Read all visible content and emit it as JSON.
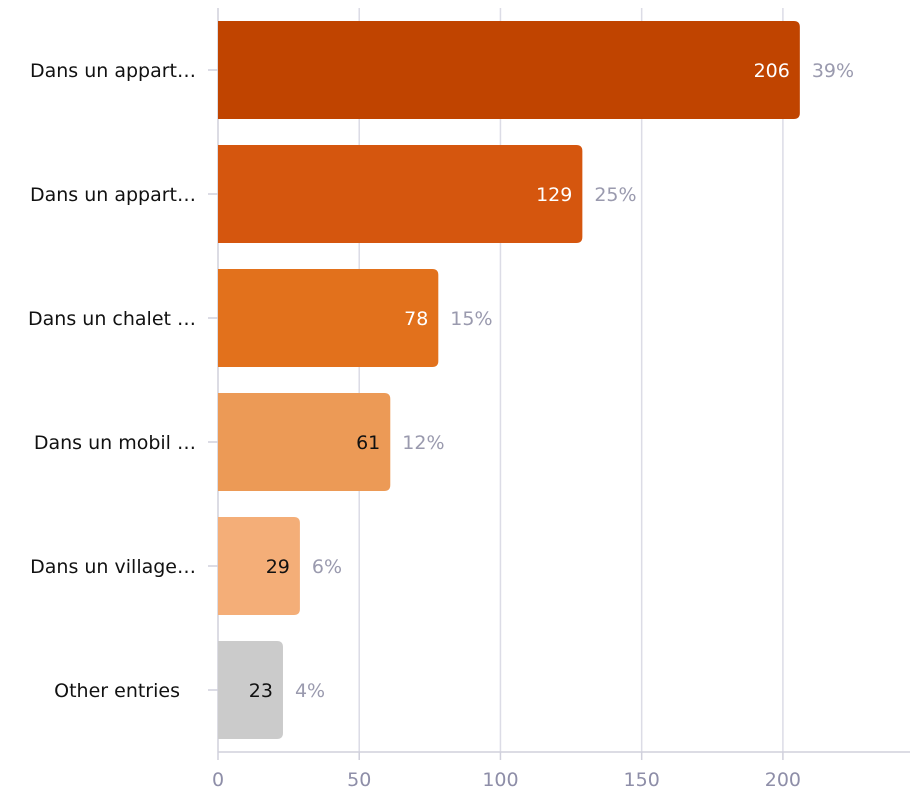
{
  "chart_data": {
    "type": "bar",
    "orientation": "horizontal",
    "categories": [
      "Dans un appart…",
      "Dans un appart…",
      "Dans un chalet …",
      "Dans un mobil …",
      "Dans un village…",
      "Other entries"
    ],
    "values": [
      206,
      129,
      78,
      61,
      29,
      23
    ],
    "value_labels": [
      "206",
      "129",
      "78",
      "61",
      "29",
      "23"
    ],
    "percent_labels": [
      "39%",
      "25%",
      "15%",
      "12%",
      "6%",
      "4%"
    ],
    "colors": [
      "#c04400",
      "#d5560e",
      "#e2711c",
      "#ec9a56",
      "#f4ae78",
      "#cbcbcb"
    ],
    "value_label_colors": [
      "#ffffff",
      "#ffffff",
      "#ffffff",
      "#111111",
      "#111111",
      "#111111"
    ],
    "xticks": [
      0,
      50,
      100,
      150,
      200
    ],
    "xtick_labels": [
      "0",
      "50",
      "100",
      "150",
      "200"
    ],
    "xlim": [
      0,
      245
    ],
    "grid": true,
    "title": "",
    "xlabel": "",
    "ylabel": ""
  }
}
